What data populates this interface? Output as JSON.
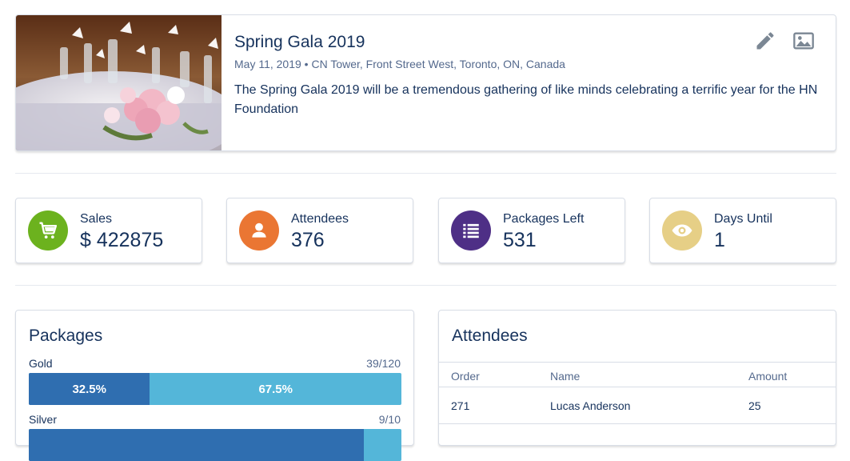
{
  "event": {
    "title": "Spring Gala 2019",
    "meta": "May 11, 2019 • CN Tower, Front Street West, Toronto, ON, Canada",
    "description": "The Spring Gala 2019 will be a tremendous gathering of like minds celebrating a terrific year for the HN Foundation",
    "image": "table-setting-roses-photo",
    "actions": [
      {
        "name": "edit",
        "icon": "pencil-icon"
      },
      {
        "name": "image",
        "icon": "image-icon"
      }
    ]
  },
  "stats": [
    {
      "label": "Sales",
      "value": "$ 422875",
      "icon": "cart-icon",
      "color": "#6cb21e"
    },
    {
      "label": "Attendees",
      "value": "376",
      "icon": "person-icon",
      "color": "#ea7633"
    },
    {
      "label": "Packages Left",
      "value": "531",
      "icon": "list-icon",
      "color": "#4e2f86"
    },
    {
      "label": "Days Until",
      "value": "1",
      "icon": "eye-icon",
      "color": "#e6cf86"
    }
  ],
  "packages": {
    "title": "Packages",
    "items": [
      {
        "name": "Gold",
        "count": "39/120",
        "sold_label": "32.5%",
        "left_label": "67.5%",
        "sold_fraction": 0.325
      },
      {
        "name": "Silver",
        "count": "9/10",
        "sold_label": "",
        "left_label": "",
        "sold_fraction": 0.9
      }
    ]
  },
  "attendees": {
    "title": "Attendees",
    "columns": [
      "Order",
      "Name",
      "Amount"
    ],
    "rows": [
      {
        "order": "271",
        "name": "Lucas Anderson",
        "amount": "25"
      }
    ]
  },
  "colors": {
    "bar_sold": "#2f6eb0",
    "bar_left": "#54b6d9",
    "text_primary": "#16325c",
    "text_secondary": "#54698d"
  }
}
